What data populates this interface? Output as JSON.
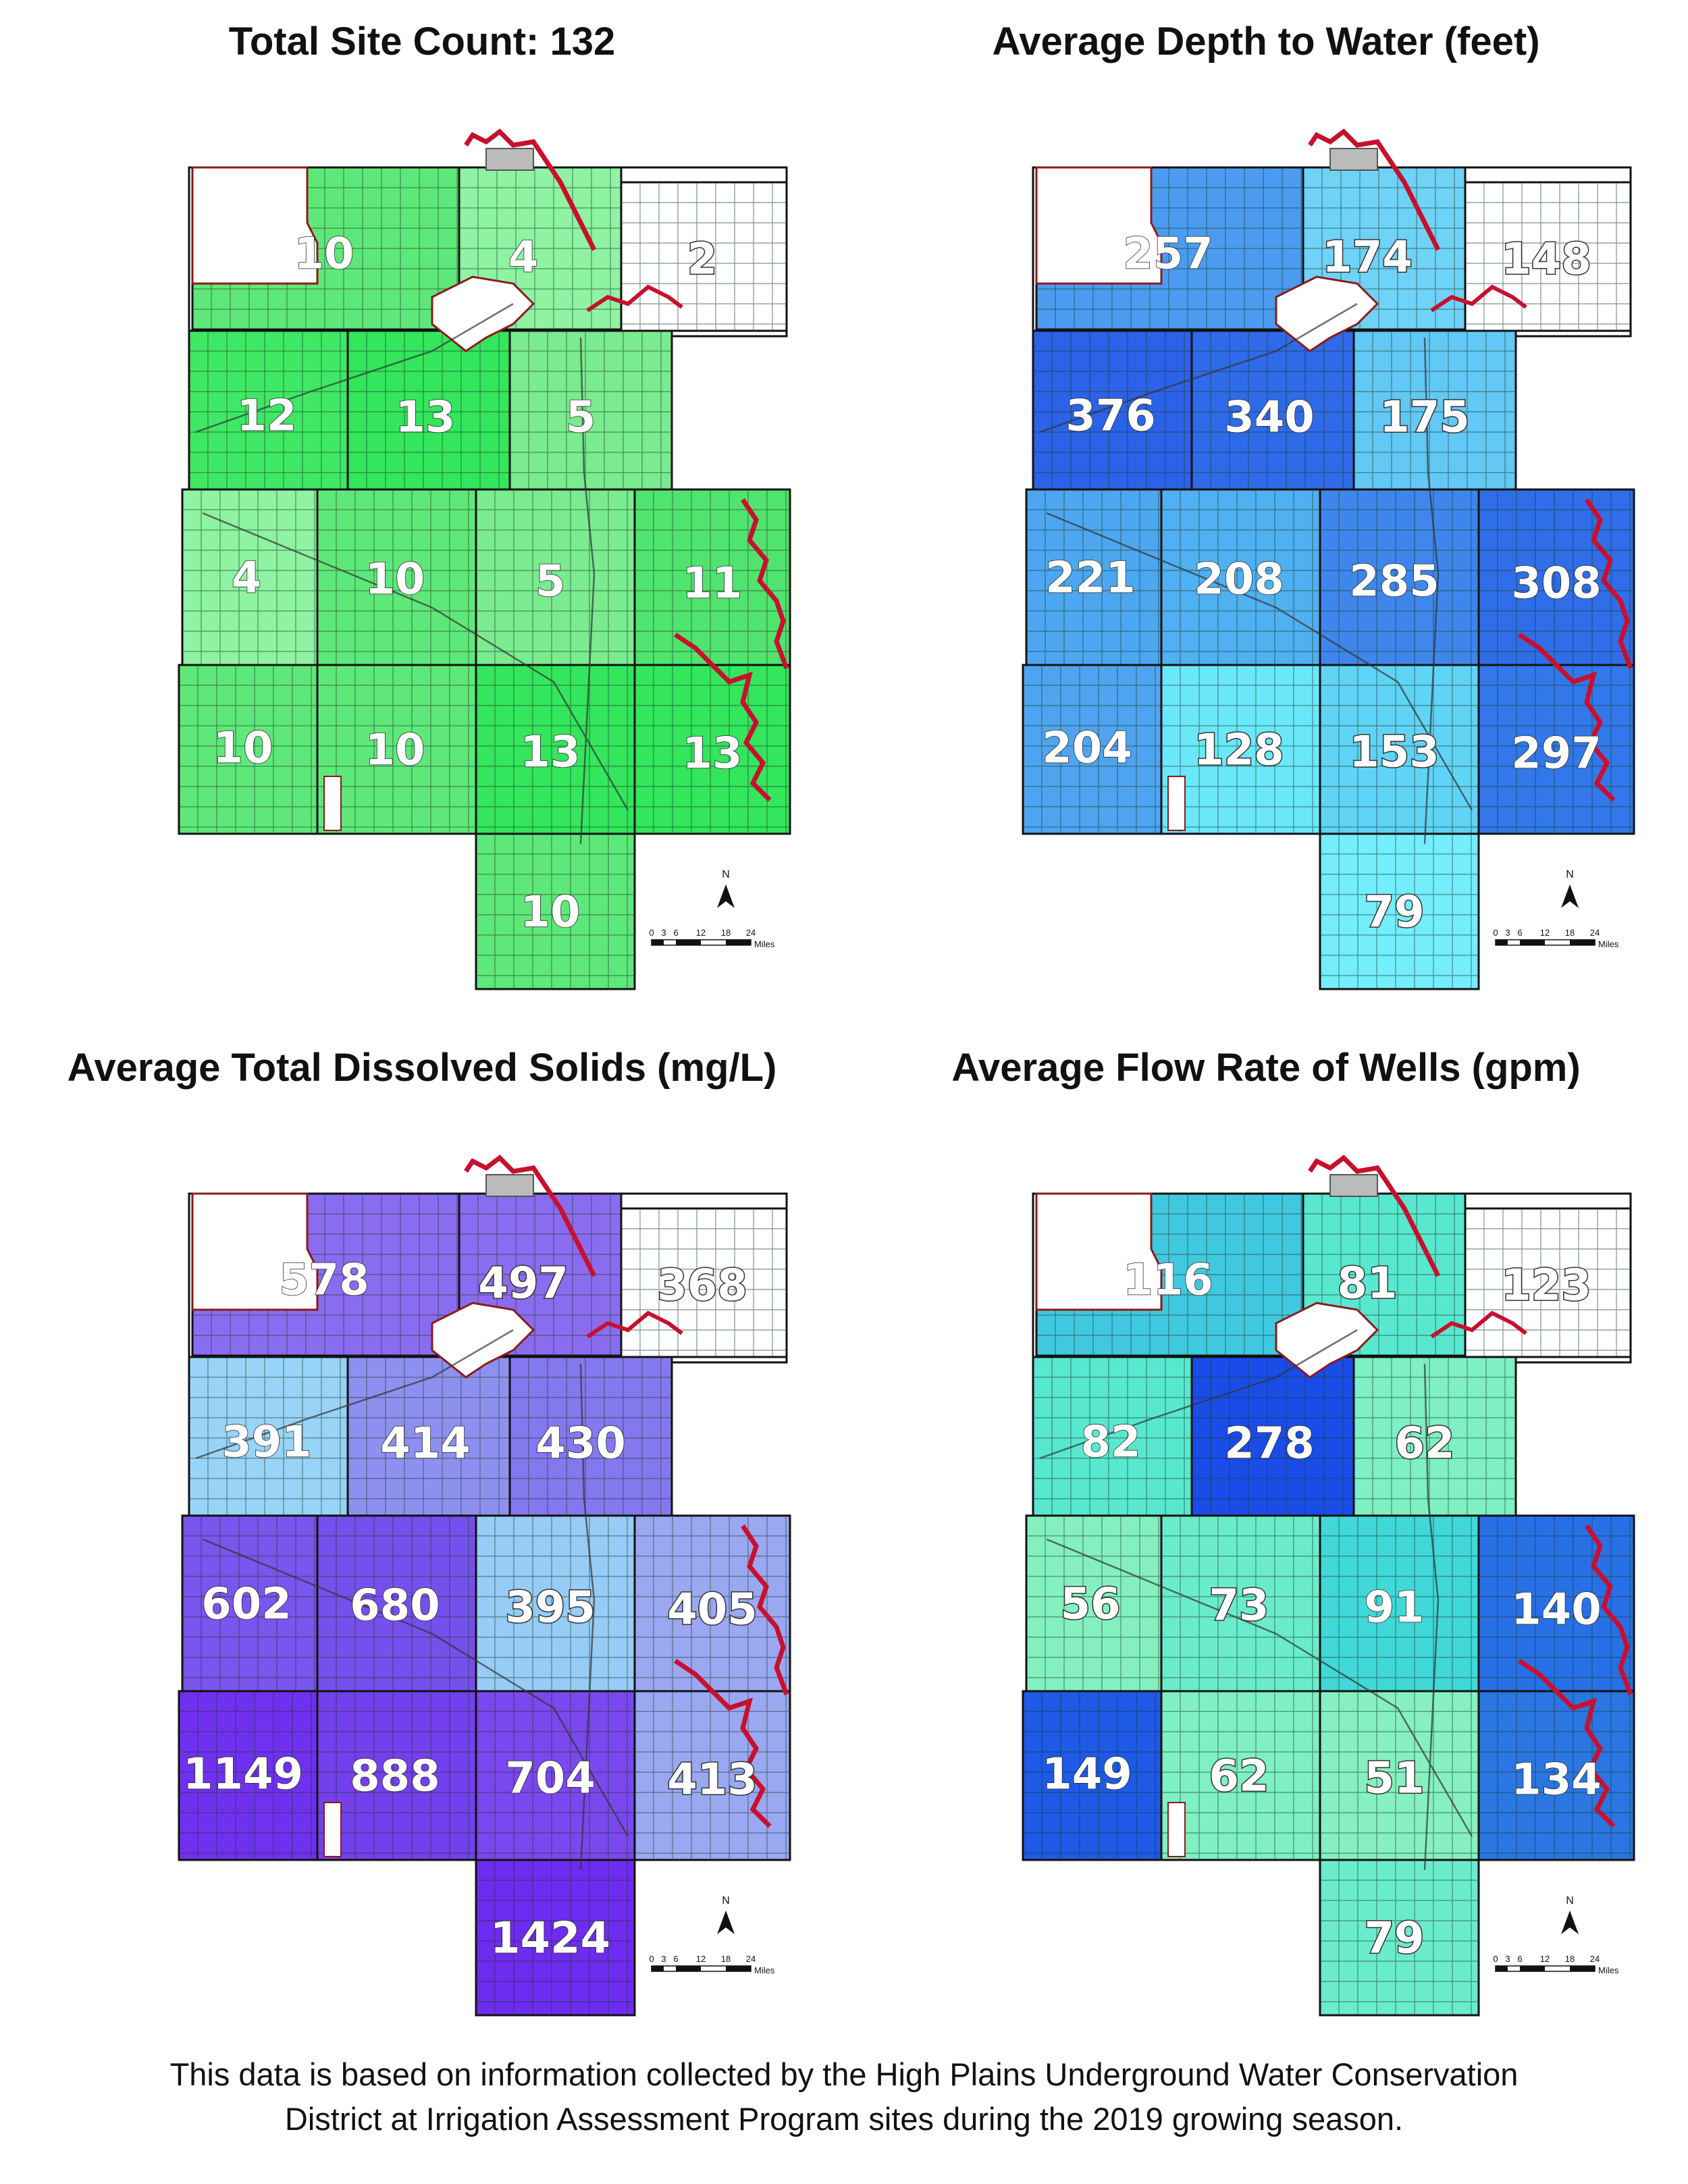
{
  "panels": [
    {
      "title": "Total Site Count: 132",
      "labels": [
        "10",
        "4",
        "2",
        "12",
        "13",
        "5",
        "4",
        "10",
        "5",
        "11",
        "10",
        "10",
        "13",
        "13",
        "10"
      ],
      "fills": [
        "#5fe87a",
        "#8ef3a2",
        "#ffffff",
        "#3fe864",
        "#33e65c",
        "#7aeb8f",
        "#8ef3a2",
        "#5fe87a",
        "#7aeb8f",
        "#50e46e",
        "#5fe87a",
        "#5fe87a",
        "#33e65c",
        "#33e65c",
        "#5fe87a"
      ],
      "outlined": [
        false,
        false,
        true,
        false,
        false,
        false,
        false,
        false,
        false,
        false,
        false,
        false,
        false,
        false,
        false
      ]
    },
    {
      "title": "Average Depth to Water (feet)",
      "labels": [
        "257",
        "174",
        "148",
        "376",
        "340",
        "175",
        "221",
        "208",
        "285",
        "308",
        "204",
        "128",
        "153",
        "297",
        "79"
      ],
      "fills": [
        "#4b9cf0",
        "#6fd2f7",
        "#ffffff",
        "#2c62e8",
        "#2f6ae8",
        "#62c8f5",
        "#4da6f0",
        "#4fb0f2",
        "#3f86ec",
        "#2f6ee8",
        "#4fa4f0",
        "#6ae8fa",
        "#60d4f6",
        "#3278ea",
        "#74eefc"
      ],
      "outlined": [
        false,
        true,
        true,
        false,
        false,
        true,
        false,
        false,
        false,
        false,
        false,
        true,
        true,
        false,
        true
      ]
    },
    {
      "title": "Average Total Dissolved Solids (mg/L)",
      "labels": [
        "578",
        "497",
        "368",
        "391",
        "414",
        "430",
        "602",
        "680",
        "395",
        "405",
        "1149",
        "888",
        "704",
        "413",
        "1424"
      ],
      "fills": [
        "#8a6cf0",
        "#8a6cf0",
        "#ffffff",
        "#98d4f8",
        "#8e90f0",
        "#8478ee",
        "#7a55ee",
        "#7650ec",
        "#96ccf6",
        "#9aa8f2",
        "#7030f0",
        "#7440ee",
        "#7a48ee",
        "#9aa8f2",
        "#6e2cf0"
      ],
      "outlined": [
        false,
        true,
        true,
        false,
        false,
        false,
        false,
        false,
        true,
        true,
        false,
        false,
        false,
        true,
        false
      ]
    },
    {
      "title": "Average Flow Rate of Wells (gpm)",
      "labels": [
        "116",
        "81",
        "123",
        "82",
        "278",
        "62",
        "56",
        "73",
        "91",
        "140",
        "149",
        "62",
        "51",
        "134",
        "79"
      ],
      "fills": [
        "#40c8e0",
        "#58e8d0",
        "#ffffff",
        "#58e8d0",
        "#1a4ce8",
        "#7ef0c4",
        "#84f0c0",
        "#6aeccc",
        "#40d8d8",
        "#2870e6",
        "#1e5ae6",
        "#7ef0c4",
        "#86f0c0",
        "#2a76e2",
        "#6aeccc"
      ],
      "outlined": [
        false,
        true,
        true,
        false,
        false,
        true,
        true,
        true,
        false,
        false,
        false,
        true,
        true,
        false,
        true
      ]
    }
  ],
  "north_label": "N",
  "scale_ticks": [
    "0",
    "3",
    "6",
    "12",
    "18",
    "24"
  ],
  "scale_unit": "Miles",
  "colors": {
    "river": "#c8102e",
    "border": "#8b1a1a",
    "grid": "#1c3b2a",
    "outline": "#111111"
  },
  "footer": {
    "line1": "This data is based on information collected by the High Plains Underground Water Conservation",
    "line2": "District at Irrigation Assessment Program sites during the 2019 growing season."
  }
}
